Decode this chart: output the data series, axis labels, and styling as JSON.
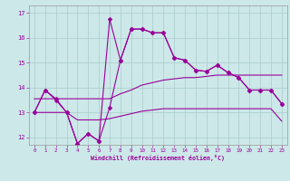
{
  "xlabel": "Windchill (Refroidissement éolien,°C)",
  "bg_color": "#cce8e8",
  "line_color": "#990099",
  "grid_color": "#aacccc",
  "xlim": [
    -0.5,
    23.5
  ],
  "ylim": [
    11.7,
    17.3
  ],
  "yticks": [
    12,
    13,
    14,
    15,
    16,
    17
  ],
  "xticks": [
    0,
    1,
    2,
    3,
    4,
    5,
    6,
    7,
    8,
    9,
    10,
    11,
    12,
    13,
    14,
    15,
    16,
    17,
    18,
    19,
    20,
    21,
    22,
    23
  ],
  "series": {
    "line_high": {
      "x": [
        0,
        1,
        2,
        3,
        4,
        5,
        6,
        7,
        8,
        9,
        10,
        11,
        12,
        13,
        14,
        15,
        16,
        17,
        18,
        19,
        20,
        21,
        22,
        23
      ],
      "y": [
        13.0,
        13.9,
        13.5,
        13.0,
        11.75,
        12.15,
        11.85,
        16.75,
        15.1,
        16.35,
        16.35,
        16.2,
        16.2,
        15.2,
        15.1,
        14.7,
        14.65,
        14.9,
        14.6,
        14.4,
        13.9,
        13.9,
        13.9,
        13.35
      ],
      "marker": "D",
      "ms": 2.5
    },
    "line_low": {
      "x": [
        0,
        1,
        2,
        3,
        4,
        5,
        6,
        7,
        8,
        9,
        10,
        11,
        12,
        13,
        14,
        15,
        16,
        17,
        18,
        19,
        20,
        21,
        22,
        23
      ],
      "y": [
        13.0,
        13.9,
        13.55,
        13.0,
        11.75,
        12.15,
        11.85,
        13.2,
        15.1,
        16.35,
        16.35,
        16.2,
        16.2,
        15.2,
        15.1,
        14.7,
        14.65,
        14.9,
        14.6,
        14.4,
        13.9,
        13.9,
        13.9,
        13.35
      ],
      "marker": "D",
      "ms": 2.5
    },
    "line_upper_flat": {
      "x": [
        0,
        1,
        2,
        3,
        4,
        5,
        6,
        7,
        8,
        9,
        10,
        11,
        12,
        13,
        14,
        15,
        16,
        17,
        18,
        19,
        20,
        21,
        22,
        23
      ],
      "y": [
        13.55,
        13.55,
        13.55,
        13.55,
        13.55,
        13.55,
        13.55,
        13.55,
        13.75,
        13.9,
        14.1,
        14.2,
        14.3,
        14.35,
        14.4,
        14.4,
        14.45,
        14.5,
        14.5,
        14.5,
        14.5,
        14.5,
        14.5,
        14.5
      ],
      "marker": null,
      "ms": 0
    },
    "line_lower_flat": {
      "x": [
        0,
        1,
        2,
        3,
        4,
        5,
        6,
        7,
        8,
        9,
        10,
        11,
        12,
        13,
        14,
        15,
        16,
        17,
        18,
        19,
        20,
        21,
        22,
        23
      ],
      "y": [
        13.0,
        13.0,
        13.0,
        13.0,
        12.7,
        12.7,
        12.7,
        12.75,
        12.85,
        12.95,
        13.05,
        13.1,
        13.15,
        13.15,
        13.15,
        13.15,
        13.15,
        13.15,
        13.15,
        13.15,
        13.15,
        13.15,
        13.15,
        12.65
      ],
      "marker": null,
      "ms": 0
    }
  }
}
